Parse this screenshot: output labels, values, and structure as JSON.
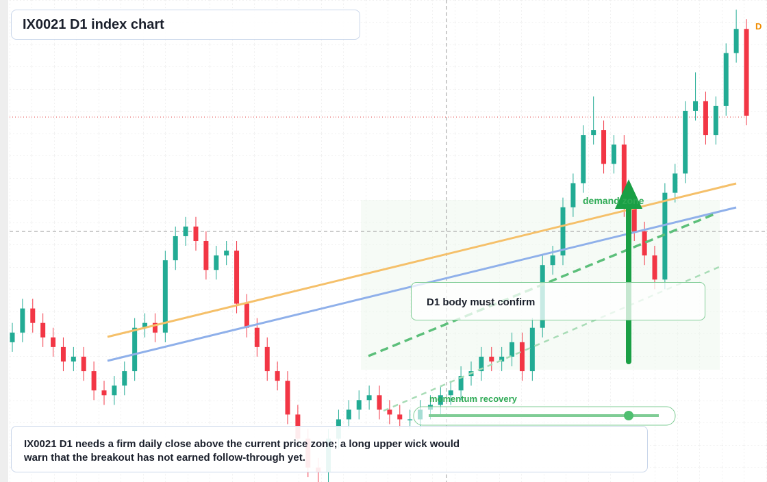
{
  "chart_data": {
    "type": "candlestick",
    "title": "IX0021 D1 index chart",
    "badge": "D",
    "note": "IX0021 D1 needs a firm daily close above the current price zone; a long upper wick would warn that the breakout has not earned follow-through yet.",
    "annotations": [
      "demand zone",
      "momentum recovery",
      "D1 body must confirm"
    ],
    "up_color": "#22ab94",
    "down_color": "#f23645",
    "ylim": [
      0,
      100
    ],
    "open": [
      29,
      31,
      36,
      33,
      30,
      28,
      25,
      26,
      23,
      19,
      18,
      20,
      23,
      32,
      33,
      31,
      46,
      51,
      53,
      50,
      44,
      47,
      48,
      37,
      32,
      28,
      23,
      21,
      14,
      9,
      3,
      2,
      9,
      13,
      15,
      17,
      18,
      15,
      14,
      13,
      13,
      15,
      16,
      18,
      19,
      22,
      23,
      26,
      25,
      26,
      29,
      23,
      32,
      45,
      47,
      57,
      62,
      72,
      73,
      66,
      70,
      57,
      52,
      47,
      42,
      60,
      64,
      77,
      79,
      72,
      78,
      89,
      94
    ],
    "high": [
      33,
      38,
      38,
      35,
      32,
      30,
      28,
      28,
      25,
      21,
      22,
      25,
      34,
      35,
      35,
      48,
      53,
      55,
      55,
      52,
      49,
      50,
      50,
      39,
      34,
      30,
      25,
      23,
      16,
      11,
      5,
      11,
      15,
      17,
      19,
      20,
      20,
      17,
      16,
      15,
      17,
      18,
      20,
      21,
      24,
      25,
      28,
      28,
      28,
      31,
      31,
      34,
      47,
      49,
      59,
      64,
      74,
      80,
      75,
      72,
      72,
      59,
      54,
      49,
      62,
      66,
      79,
      85,
      81,
      80,
      91,
      98,
      96
    ],
    "low": [
      27,
      29,
      31,
      28,
      26,
      23,
      23,
      21,
      17,
      16,
      16,
      18,
      21,
      30,
      29,
      29,
      44,
      49,
      48,
      42,
      42,
      45,
      35,
      30,
      26,
      21,
      19,
      12,
      7,
      1,
      0,
      0,
      7,
      11,
      13,
      15,
      13,
      12,
      11,
      11,
      11,
      13,
      14,
      16,
      17,
      20,
      21,
      23,
      23,
      24,
      21,
      21,
      30,
      43,
      45,
      55,
      60,
      70,
      64,
      64,
      55,
      50,
      45,
      40,
      40,
      58,
      62,
      75,
      70,
      70,
      76,
      87,
      74
    ],
    "close": [
      31,
      36,
      33,
      30,
      28,
      25,
      26,
      23,
      19,
      18,
      20,
      23,
      32,
      33,
      31,
      46,
      51,
      53,
      50,
      44,
      47,
      48,
      37,
      32,
      28,
      23,
      21,
      14,
      9,
      3,
      2,
      9,
      13,
      15,
      17,
      18,
      15,
      14,
      13,
      13,
      15,
      16,
      18,
      19,
      22,
      23,
      26,
      25,
      26,
      29,
      23,
      32,
      45,
      47,
      57,
      62,
      72,
      73,
      66,
      70,
      57,
      52,
      47,
      42,
      60,
      64,
      77,
      79,
      72,
      78,
      89,
      94,
      76
    ]
  }
}
